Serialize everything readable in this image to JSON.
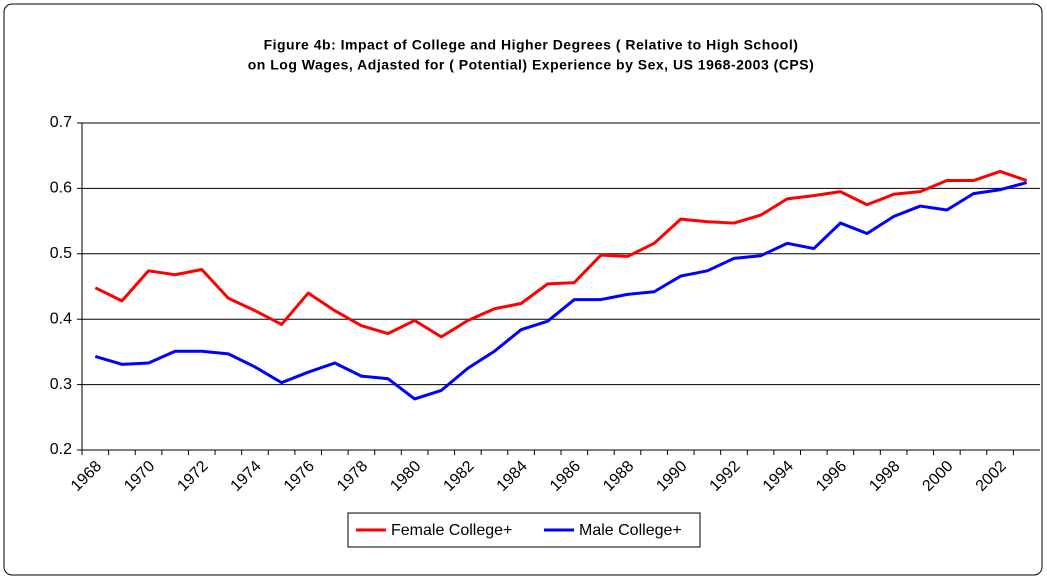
{
  "chart_data": {
    "type": "line",
    "title": [
      "Figure 4b: Impact of College and Higher Degrees ( Relative to High School)",
      "on Log Wages, Adjasted for ( Potential) Experience by Sex, US 1968-2003 (CPS)"
    ],
    "categories": [
      "1968",
      null,
      "1970",
      null,
      "1972",
      null,
      "1974",
      null,
      "1976",
      null,
      "1978",
      null,
      "1980",
      null,
      "1982",
      null,
      "1984",
      null,
      "1986",
      null,
      "1988",
      null,
      "1990",
      null,
      "1992",
      null,
      "1994",
      null,
      "1996",
      null,
      "1998",
      null,
      "2000",
      null,
      "2002",
      null
    ],
    "series": [
      {
        "name": "Female College+",
        "color": "#ff0000",
        "values": [
          0.448,
          0.428,
          0.474,
          0.468,
          0.476,
          0.432,
          0.413,
          0.392,
          0.44,
          0.413,
          0.39,
          0.378,
          0.398,
          0.373,
          0.398,
          0.416,
          0.424,
          0.454,
          0.456,
          0.498,
          0.496,
          0.516,
          0.553,
          0.549,
          0.547,
          0.559,
          0.584,
          0.589,
          0.595,
          0.575,
          0.591,
          0.595,
          0.612,
          0.612,
          0.626,
          0.612
        ]
      },
      {
        "name": "Male College+",
        "color": "#0000ff",
        "values": [
          0.343,
          0.331,
          0.333,
          0.351,
          0.351,
          0.347,
          0.327,
          0.303,
          0.319,
          0.333,
          0.313,
          0.309,
          0.278,
          0.291,
          0.325,
          0.351,
          0.384,
          0.397,
          0.43,
          0.43,
          0.438,
          0.442,
          0.466,
          0.474,
          0.493,
          0.497,
          0.516,
          0.508,
          0.547,
          0.531,
          0.557,
          0.573,
          0.567,
          0.592,
          0.598,
          0.609
        ]
      }
    ],
    "ylim": [
      0.2,
      0.7
    ],
    "yticks": [
      0.2,
      0.3,
      0.4,
      0.5,
      0.6,
      0.7
    ],
    "grid": true,
    "legend": "bottom"
  }
}
